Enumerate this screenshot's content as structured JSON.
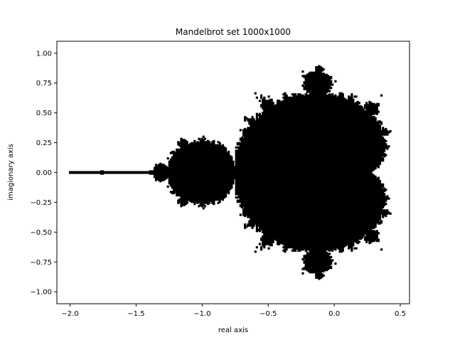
{
  "chart_data": {
    "type": "scatter",
    "title": "Mandelbrot set 1000x1000",
    "xlabel": "real axis",
    "ylabel": "imagionary axis",
    "xlim": [
      -2.1,
      0.57
    ],
    "ylim": [
      -1.1,
      1.1
    ],
    "xticks": [
      -2.0,
      -1.5,
      -1.0,
      -0.5,
      0.0,
      0.5
    ],
    "xtick_labels": [
      "−2.0",
      "−1.5",
      "−1.0",
      "−0.5",
      "0.0",
      "0.5"
    ],
    "yticks": [
      -1.0,
      -0.75,
      -0.5,
      -0.25,
      0.0,
      0.25,
      0.5,
      0.75,
      1.0
    ],
    "ytick_labels": [
      "−1.00",
      "−0.75",
      "−0.50",
      "−0.25",
      "0.00",
      "0.25",
      "0.50",
      "0.75",
      "1.00"
    ],
    "grid": false,
    "legend": false,
    "marker_color": "#000000",
    "series": [
      {
        "values_description_free": true,
        "x_range": [
          -2.0,
          0.47
        ],
        "y_range": [
          -1.0,
          1.0
        ],
        "grid_resolution": [
          1000,
          1000
        ],
        "max_iterations": 60,
        "escape_radius": 2
      }
    ]
  }
}
